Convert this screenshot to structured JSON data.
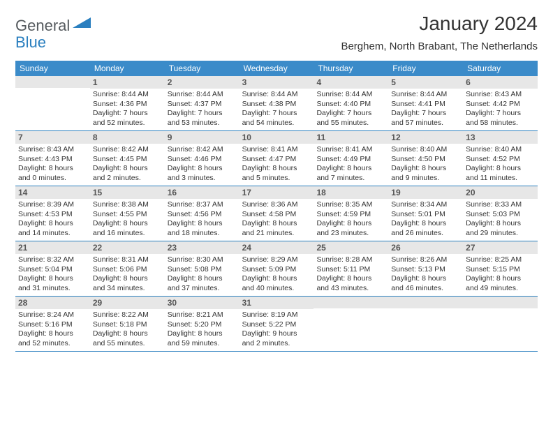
{
  "logo": {
    "part1": "General",
    "part2": "Blue"
  },
  "title": "January 2024",
  "location": "Berghem, North Brabant, The Netherlands",
  "colors": {
    "header_bg": "#3b8bc9",
    "header_fg": "#ffffff",
    "daynum_bg": "#e7e7e7",
    "daynum_fg": "#555555",
    "border": "#2a7fbf",
    "text": "#333333",
    "logo_gray": "#555a5e",
    "logo_blue": "#2a7fbf"
  },
  "day_names": [
    "Sunday",
    "Monday",
    "Tuesday",
    "Wednesday",
    "Thursday",
    "Friday",
    "Saturday"
  ],
  "weeks": [
    [
      {
        "n": "",
        "sr": "",
        "ss": "",
        "dl": ""
      },
      {
        "n": "1",
        "sr": "Sunrise: 8:44 AM",
        "ss": "Sunset: 4:36 PM",
        "dl": "Daylight: 7 hours and 52 minutes."
      },
      {
        "n": "2",
        "sr": "Sunrise: 8:44 AM",
        "ss": "Sunset: 4:37 PM",
        "dl": "Daylight: 7 hours and 53 minutes."
      },
      {
        "n": "3",
        "sr": "Sunrise: 8:44 AM",
        "ss": "Sunset: 4:38 PM",
        "dl": "Daylight: 7 hours and 54 minutes."
      },
      {
        "n": "4",
        "sr": "Sunrise: 8:44 AM",
        "ss": "Sunset: 4:40 PM",
        "dl": "Daylight: 7 hours and 55 minutes."
      },
      {
        "n": "5",
        "sr": "Sunrise: 8:44 AM",
        "ss": "Sunset: 4:41 PM",
        "dl": "Daylight: 7 hours and 57 minutes."
      },
      {
        "n": "6",
        "sr": "Sunrise: 8:43 AM",
        "ss": "Sunset: 4:42 PM",
        "dl": "Daylight: 7 hours and 58 minutes."
      }
    ],
    [
      {
        "n": "7",
        "sr": "Sunrise: 8:43 AM",
        "ss": "Sunset: 4:43 PM",
        "dl": "Daylight: 8 hours and 0 minutes."
      },
      {
        "n": "8",
        "sr": "Sunrise: 8:42 AM",
        "ss": "Sunset: 4:45 PM",
        "dl": "Daylight: 8 hours and 2 minutes."
      },
      {
        "n": "9",
        "sr": "Sunrise: 8:42 AM",
        "ss": "Sunset: 4:46 PM",
        "dl": "Daylight: 8 hours and 3 minutes."
      },
      {
        "n": "10",
        "sr": "Sunrise: 8:41 AM",
        "ss": "Sunset: 4:47 PM",
        "dl": "Daylight: 8 hours and 5 minutes."
      },
      {
        "n": "11",
        "sr": "Sunrise: 8:41 AM",
        "ss": "Sunset: 4:49 PM",
        "dl": "Daylight: 8 hours and 7 minutes."
      },
      {
        "n": "12",
        "sr": "Sunrise: 8:40 AM",
        "ss": "Sunset: 4:50 PM",
        "dl": "Daylight: 8 hours and 9 minutes."
      },
      {
        "n": "13",
        "sr": "Sunrise: 8:40 AM",
        "ss": "Sunset: 4:52 PM",
        "dl": "Daylight: 8 hours and 11 minutes."
      }
    ],
    [
      {
        "n": "14",
        "sr": "Sunrise: 8:39 AM",
        "ss": "Sunset: 4:53 PM",
        "dl": "Daylight: 8 hours and 14 minutes."
      },
      {
        "n": "15",
        "sr": "Sunrise: 8:38 AM",
        "ss": "Sunset: 4:55 PM",
        "dl": "Daylight: 8 hours and 16 minutes."
      },
      {
        "n": "16",
        "sr": "Sunrise: 8:37 AM",
        "ss": "Sunset: 4:56 PM",
        "dl": "Daylight: 8 hours and 18 minutes."
      },
      {
        "n": "17",
        "sr": "Sunrise: 8:36 AM",
        "ss": "Sunset: 4:58 PM",
        "dl": "Daylight: 8 hours and 21 minutes."
      },
      {
        "n": "18",
        "sr": "Sunrise: 8:35 AM",
        "ss": "Sunset: 4:59 PM",
        "dl": "Daylight: 8 hours and 23 minutes."
      },
      {
        "n": "19",
        "sr": "Sunrise: 8:34 AM",
        "ss": "Sunset: 5:01 PM",
        "dl": "Daylight: 8 hours and 26 minutes."
      },
      {
        "n": "20",
        "sr": "Sunrise: 8:33 AM",
        "ss": "Sunset: 5:03 PM",
        "dl": "Daylight: 8 hours and 29 minutes."
      }
    ],
    [
      {
        "n": "21",
        "sr": "Sunrise: 8:32 AM",
        "ss": "Sunset: 5:04 PM",
        "dl": "Daylight: 8 hours and 31 minutes."
      },
      {
        "n": "22",
        "sr": "Sunrise: 8:31 AM",
        "ss": "Sunset: 5:06 PM",
        "dl": "Daylight: 8 hours and 34 minutes."
      },
      {
        "n": "23",
        "sr": "Sunrise: 8:30 AM",
        "ss": "Sunset: 5:08 PM",
        "dl": "Daylight: 8 hours and 37 minutes."
      },
      {
        "n": "24",
        "sr": "Sunrise: 8:29 AM",
        "ss": "Sunset: 5:09 PM",
        "dl": "Daylight: 8 hours and 40 minutes."
      },
      {
        "n": "25",
        "sr": "Sunrise: 8:28 AM",
        "ss": "Sunset: 5:11 PM",
        "dl": "Daylight: 8 hours and 43 minutes."
      },
      {
        "n": "26",
        "sr": "Sunrise: 8:26 AM",
        "ss": "Sunset: 5:13 PM",
        "dl": "Daylight: 8 hours and 46 minutes."
      },
      {
        "n": "27",
        "sr": "Sunrise: 8:25 AM",
        "ss": "Sunset: 5:15 PM",
        "dl": "Daylight: 8 hours and 49 minutes."
      }
    ],
    [
      {
        "n": "28",
        "sr": "Sunrise: 8:24 AM",
        "ss": "Sunset: 5:16 PM",
        "dl": "Daylight: 8 hours and 52 minutes."
      },
      {
        "n": "29",
        "sr": "Sunrise: 8:22 AM",
        "ss": "Sunset: 5:18 PM",
        "dl": "Daylight: 8 hours and 55 minutes."
      },
      {
        "n": "30",
        "sr": "Sunrise: 8:21 AM",
        "ss": "Sunset: 5:20 PM",
        "dl": "Daylight: 8 hours and 59 minutes."
      },
      {
        "n": "31",
        "sr": "Sunrise: 8:19 AM",
        "ss": "Sunset: 5:22 PM",
        "dl": "Daylight: 9 hours and 2 minutes."
      },
      {
        "n": "",
        "sr": "",
        "ss": "",
        "dl": ""
      },
      {
        "n": "",
        "sr": "",
        "ss": "",
        "dl": ""
      },
      {
        "n": "",
        "sr": "",
        "ss": "",
        "dl": ""
      }
    ]
  ]
}
